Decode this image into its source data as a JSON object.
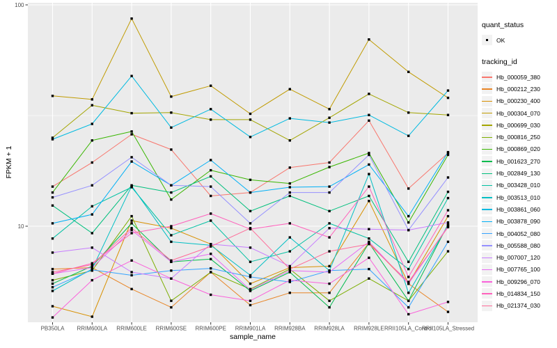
{
  "figure": {
    "y_axis_title": "FPKM + 1",
    "x_axis_title": "sample_name",
    "legend_quant_title": "quant_status",
    "legend_quant_item": "OK",
    "legend_tracking_title": "tracking_id"
  },
  "style": {
    "panel_bg": "#EBEBEB",
    "grid_color": "#FFFFFF",
    "tick_label_color": "#4D4D4D",
    "point_color": "#000000",
    "legend_key_bg": "#F2F2F2"
  },
  "chart_data": {
    "type": "line",
    "title": "",
    "xlabel": "sample_name",
    "ylabel": "FPKM + 1",
    "yscale": "log10",
    "ylim": [
      3.6,
      105
    ],
    "yticks": [
      100,
      10
    ],
    "ytick_labels": [
      "100",
      "10"
    ],
    "minor_yticks": [
      31.6
    ],
    "grid": true,
    "legend_position": "right",
    "point_shape": "filled-square-black",
    "x": [
      "PB350LA",
      "RRIM600LA",
      "RRIM600LE",
      "RRIM600SE",
      "RRIM600PE",
      "RRIM901LA",
      "RRIM928BA",
      "RRIM928LA",
      "RRIM928LE",
      "RRII105LA_Control",
      "RRII105LA_Stressed"
    ],
    "quant_status": "OK",
    "series": [
      {
        "name": "Hb_000059_380",
        "color": "#F8766D",
        "values": [
          15.1,
          19.4,
          26.0,
          22.2,
          13.7,
          14.2,
          18.4,
          19.4,
          30.0,
          14.8,
          21.4
        ]
      },
      {
        "name": "Hb_000212_230",
        "color": "#E88526",
        "values": [
          6.4,
          6.5,
          5.2,
          4.3,
          6.2,
          4.4,
          5.0,
          5.0,
          8.4,
          5.5,
          4.1
        ]
      },
      {
        "name": "Hb_000230_400",
        "color": "#D89000",
        "values": [
          4.35,
          3.9,
          10.6,
          9.8,
          8.3,
          5.5,
          6.5,
          6.6,
          13.0,
          5.5,
          11.1
        ]
      },
      {
        "name": "Hb_000304_070",
        "color": "#C09B00",
        "values": [
          38.8,
          37.4,
          86.7,
          38.5,
          43.1,
          32.2,
          41.6,
          33.8,
          69.8,
          49.8,
          38.0
        ]
      },
      {
        "name": "Hb_000699_030",
        "color": "#A3A500",
        "values": [
          25.1,
          35.2,
          32.4,
          32.6,
          30.3,
          30.3,
          24.4,
          30.9,
          39.6,
          32.6,
          31.8
        ]
      },
      {
        "name": "Hb_000816_250",
        "color": "#7CAE00",
        "values": [
          5.7,
          6.3,
          11.1,
          4.6,
          6.2,
          5.2,
          6.4,
          4.6,
          5.8,
          4.6,
          7.7
        ]
      },
      {
        "name": "Hb_000869_020",
        "color": "#39B600",
        "values": [
          14.2,
          24.4,
          26.8,
          13.2,
          17.9,
          16.2,
          15.6,
          18.5,
          21.4,
          10.4,
          21.0
        ]
      },
      {
        "name": "Hb_001623_270",
        "color": "#00BB4E",
        "values": [
          5.5,
          6.6,
          10.3,
          6.9,
          7.1,
          5.1,
          6.2,
          4.3,
          8.4,
          4.6,
          10.2
        ]
      },
      {
        "name": "Hb_002849_130",
        "color": "#00BF7D",
        "values": [
          12.4,
          9.3,
          15.3,
          14.2,
          16.8,
          11.7,
          13.7,
          11.7,
          13.7,
          6.9,
          14.3
        ]
      },
      {
        "name": "Hb_003428_010",
        "color": "#00C1A3",
        "values": [
          8.8,
          12.3,
          15.0,
          9.1,
          10.6,
          6.9,
          7.7,
          10.3,
          8.8,
          6.4,
          13.4
        ]
      },
      {
        "name": "Hb_003513_010",
        "color": "#00BFC4",
        "values": [
          5.1,
          6.4,
          15.2,
          8.5,
          8.2,
          6.0,
          8.9,
          6.3,
          17.2,
          5.0,
          10.1
        ]
      },
      {
        "name": "Hb_003861_060",
        "color": "#00BAE0",
        "values": [
          24.7,
          29.0,
          47.7,
          27.9,
          33.8,
          25.3,
          30.7,
          29.4,
          31.8,
          25.6,
          41.0
        ]
      },
      {
        "name": "Hb_003878_090",
        "color": "#00B0F6",
        "values": [
          10.3,
          11.3,
          19.6,
          15.3,
          19.9,
          14.2,
          15.0,
          15.1,
          19.0,
          11.1,
          21.6
        ]
      },
      {
        "name": "Hb_004052_080",
        "color": "#35A2FF",
        "values": [
          5.3,
          6.35,
          6.0,
          6.3,
          6.45,
          5.9,
          5.6,
          6.3,
          6.4,
          4.3,
          8.5
        ]
      },
      {
        "name": "Hb_005588_080",
        "color": "#9590FF",
        "values": [
          13.5,
          15.3,
          20.5,
          15.3,
          15.1,
          10.3,
          14.2,
          14.2,
          21.0,
          9.6,
          16.6
        ]
      },
      {
        "name": "Hb_007007_120",
        "color": "#C77CFF",
        "values": [
          7.6,
          8.0,
          6.2,
          5.8,
          8.3,
          8.0,
          6.6,
          9.8,
          9.7,
          9.6,
          10.4
        ]
      },
      {
        "name": "Hb_007765_100",
        "color": "#E76BF3",
        "values": [
          6.1,
          6.5,
          9.6,
          6.9,
          7.5,
          5.15,
          6.3,
          6.2,
          8.5,
          5.5,
          10.0
        ]
      },
      {
        "name": "Hb_009296_070",
        "color": "#FA62DB",
        "values": [
          3.87,
          5.7,
          7.0,
          5.8,
          4.9,
          4.6,
          5.7,
          5.5,
          7.2,
          4.0,
          4.55
        ]
      },
      {
        "name": "Hb_014834_150",
        "color": "#FF62BC",
        "values": [
          6.1,
          6.8,
          9.3,
          10.0,
          11.4,
          9.7,
          10.3,
          8.9,
          15.1,
          5.9,
          11.8
        ]
      },
      {
        "name": "Hb_021374_030",
        "color": "#FF6A98",
        "values": [
          6.2,
          6.7,
          9.8,
          7.0,
          8.1,
          9.8,
          6.4,
          7.7,
          8.3,
          5.6,
          9.9
        ]
      }
    ]
  }
}
